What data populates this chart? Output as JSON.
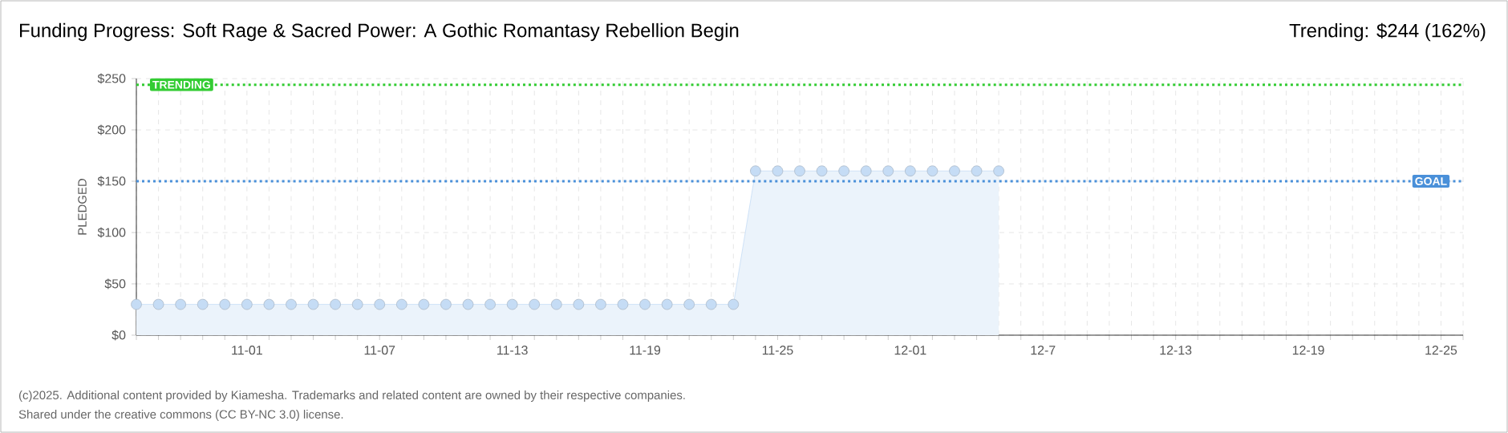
{
  "chart_data": {
    "type": "area",
    "title": "Funding Progress: Soft Rage & Sacred Power: A Gothic Romantasy Rebellion Begin",
    "subtitle": "Trending:  $244 (162%)",
    "ylabel": "PLEDGED",
    "x": [
      "2025-10-27",
      "2025-10-28",
      "2025-10-29",
      "2025-10-30",
      "2025-10-31",
      "2025-11-01",
      "2025-11-02",
      "2025-11-03",
      "2025-11-04",
      "2025-11-05",
      "2025-11-06",
      "2025-11-07",
      "2025-11-08",
      "2025-11-09",
      "2025-11-10",
      "2025-11-11",
      "2025-11-12",
      "2025-11-13",
      "2025-11-14",
      "2025-11-15",
      "2025-11-16",
      "2025-11-17",
      "2025-11-18",
      "2025-11-19",
      "2025-11-20",
      "2025-11-21",
      "2025-11-22",
      "2025-11-23",
      "2025-11-24",
      "2025-11-25",
      "2025-11-26",
      "2025-11-27",
      "2025-11-28",
      "2025-11-29",
      "2025-11-30",
      "2025-12-01",
      "2025-12-02",
      "2025-12-03",
      "2025-12-04",
      "2025-12-05"
    ],
    "series": [
      {
        "color": "#c5dcf5",
        "values": [
          30,
          30,
          30,
          30,
          30,
          30,
          30,
          30,
          30,
          30,
          30,
          30,
          30,
          30,
          30,
          30,
          30,
          30,
          30,
          30,
          30,
          30,
          30,
          30,
          30,
          30,
          30,
          30,
          160,
          160,
          160,
          160,
          160,
          160,
          160,
          160,
          160,
          160,
          160,
          160
        ]
      }
    ],
    "marker": "circle",
    "grid": true,
    "xlim": [
      "2025-10-27",
      "2025-12-26"
    ],
    "xticks": [
      {
        "value": "2025-10-27",
        "label": null
      },
      {
        "value": "2025-10-28",
        "label": null
      },
      {
        "value": "2025-10-29",
        "label": null
      },
      {
        "value": "2025-10-30",
        "label": null
      },
      {
        "value": "2025-10-31",
        "label": null
      },
      {
        "value": "2025-11-01",
        "label": "11-01"
      },
      {
        "value": "2025-11-02",
        "label": null
      },
      {
        "value": "2025-11-03",
        "label": null
      },
      {
        "value": "2025-11-04",
        "label": null
      },
      {
        "value": "2025-11-05",
        "label": null
      },
      {
        "value": "2025-11-06",
        "label": null
      },
      {
        "value": "2025-11-07",
        "label": "11-07"
      },
      {
        "value": "2025-11-08",
        "label": null
      },
      {
        "value": "2025-11-09",
        "label": null
      },
      {
        "value": "2025-11-10",
        "label": null
      },
      {
        "value": "2025-11-11",
        "label": null
      },
      {
        "value": "2025-11-12",
        "label": null
      },
      {
        "value": "2025-11-13",
        "label": "11-13"
      },
      {
        "value": "2025-11-14",
        "label": null
      },
      {
        "value": "2025-11-15",
        "label": null
      },
      {
        "value": "2025-11-16",
        "label": null
      },
      {
        "value": "2025-11-17",
        "label": null
      },
      {
        "value": "2025-11-18",
        "label": null
      },
      {
        "value": "2025-11-19",
        "label": "11-19"
      },
      {
        "value": "2025-11-20",
        "label": null
      },
      {
        "value": "2025-11-21",
        "label": null
      },
      {
        "value": "2025-11-22",
        "label": null
      },
      {
        "value": "2025-11-23",
        "label": null
      },
      {
        "value": "2025-11-24",
        "label": null
      },
      {
        "value": "2025-11-25",
        "label": "11-25"
      },
      {
        "value": "2025-11-26",
        "label": null
      },
      {
        "value": "2025-11-27",
        "label": null
      },
      {
        "value": "2025-11-28",
        "label": null
      },
      {
        "value": "2025-11-29",
        "label": null
      },
      {
        "value": "2025-11-30",
        "label": null
      },
      {
        "value": "2025-12-01",
        "label": "12-01"
      },
      {
        "value": "2025-12-02",
        "label": null
      },
      {
        "value": "2025-12-03",
        "label": null
      },
      {
        "value": "2025-12-04",
        "label": null
      },
      {
        "value": "2025-12-05",
        "label": null
      },
      {
        "value": "2025-12-06",
        "label": null
      },
      {
        "value": "2025-12-07",
        "label": "12-7"
      },
      {
        "value": "2025-12-08",
        "label": null
      },
      {
        "value": "2025-12-09",
        "label": null
      },
      {
        "value": "2025-12-10",
        "label": null
      },
      {
        "value": "2025-12-11",
        "label": null
      },
      {
        "value": "2025-12-12",
        "label": null
      },
      {
        "value": "2025-12-13",
        "label": "12-13"
      },
      {
        "value": "2025-12-14",
        "label": null
      },
      {
        "value": "2025-12-15",
        "label": null
      },
      {
        "value": "2025-12-16",
        "label": null
      },
      {
        "value": "2025-12-17",
        "label": null
      },
      {
        "value": "2025-12-18",
        "label": null
      },
      {
        "value": "2025-12-19",
        "label": "12-19"
      },
      {
        "value": "2025-12-20",
        "label": null
      },
      {
        "value": "2025-12-21",
        "label": null
      },
      {
        "value": "2025-12-22",
        "label": null
      },
      {
        "value": "2025-12-23",
        "label": null
      },
      {
        "value": "2025-12-24",
        "label": null
      },
      {
        "value": "2025-12-25",
        "label": "12-25"
      },
      {
        "value": "2025-12-26",
        "label": null
      }
    ],
    "ylim": [
      0,
      250
    ],
    "yticks": [
      {
        "value": 0,
        "label": "$0"
      },
      {
        "value": 50,
        "label": "$50"
      },
      {
        "value": 100,
        "label": "$100"
      },
      {
        "value": 150,
        "label": "$150"
      },
      {
        "value": 200,
        "label": "$200"
      },
      {
        "value": 250,
        "label": "$250"
      }
    ],
    "ref_lines": [
      {
        "axis": "y",
        "value": 244,
        "label": "TRENDING",
        "color": "#33cc33",
        "line_style": "dotted"
      },
      {
        "axis": "y",
        "value": 150,
        "label": "GOAL",
        "color": "#4a90d9",
        "line_style": "dotted"
      }
    ],
    "annotations": [
      "(c)2025. Additional content provided by Kiamesha. Trademarks and related content are owned by their respective companies.",
      "Shared under the creative commons (CC BY-NC 3.0) license."
    ]
  }
}
